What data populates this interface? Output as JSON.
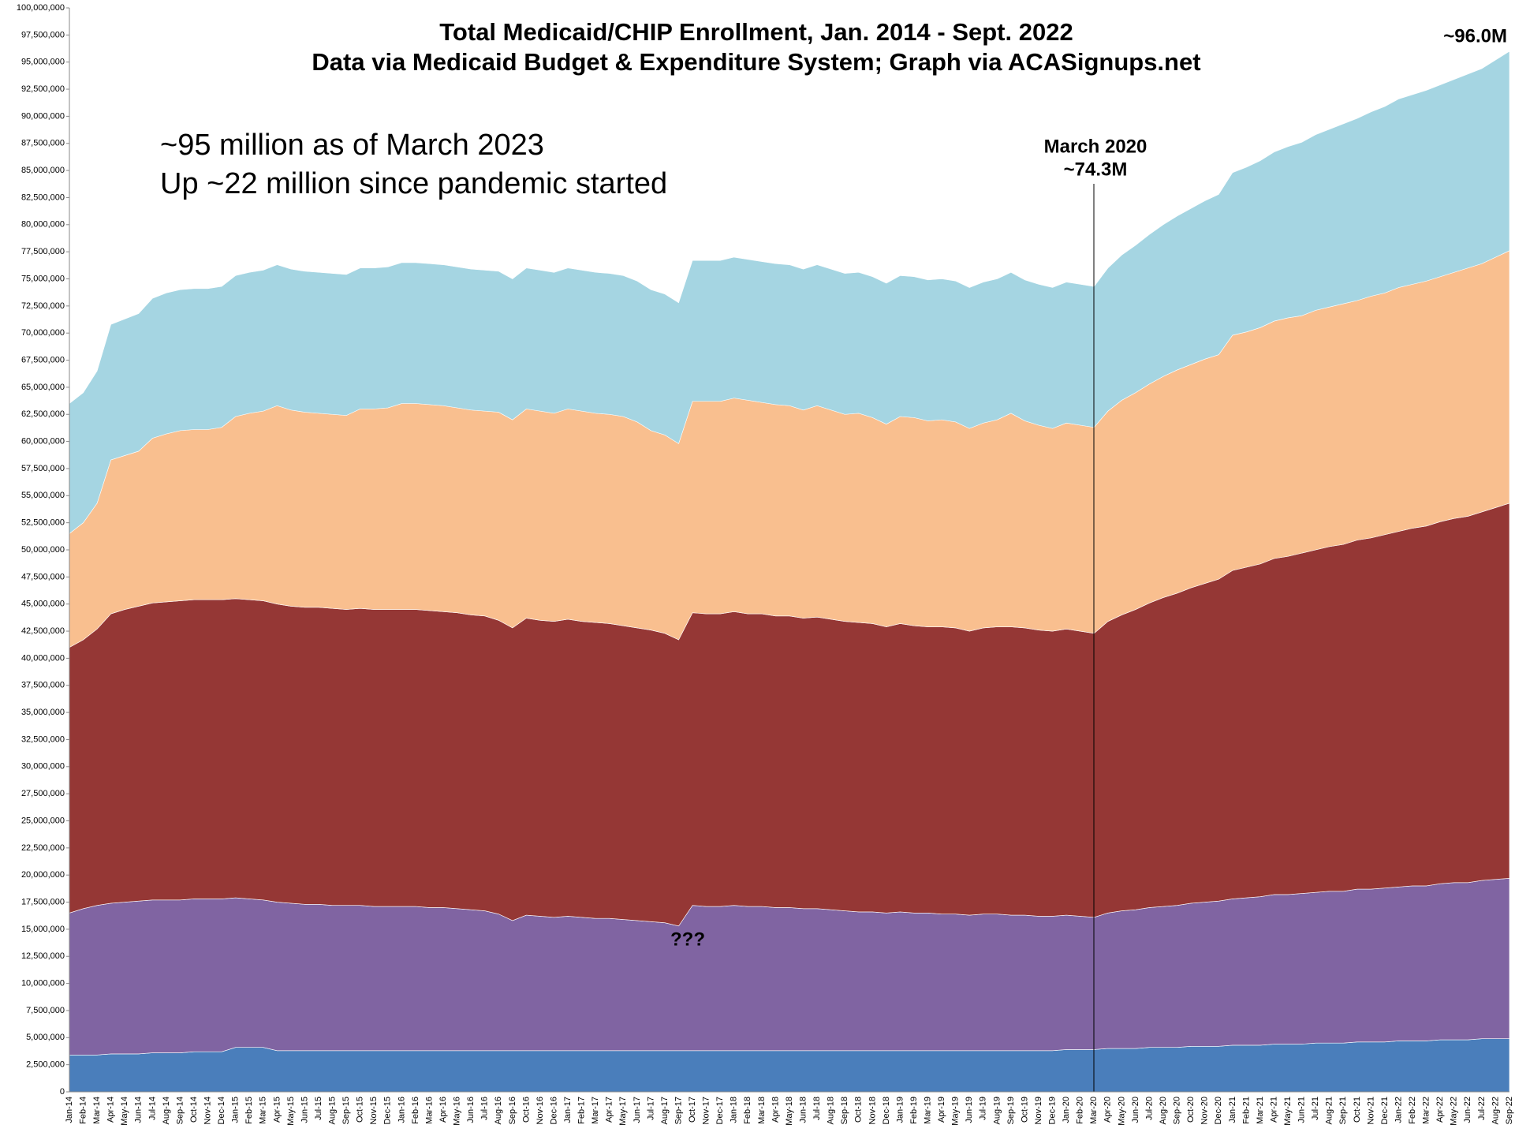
{
  "chart_data": {
    "type": "area",
    "stacked": true,
    "title": "Total Medicaid/CHIP Enrollment, Jan. 2014 - Sept. 2022",
    "subtitle": "Data via Medicaid Budget & Expenditure System; Graph via ACASignups.net",
    "annotations": [
      "~95 million as of March 2023",
      "Up ~22 million since pandemic started",
      "March 2020",
      "~74.3M",
      "~96.0M",
      "???"
    ],
    "categories": [
      "Jan-14",
      "Feb-14",
      "Mar-14",
      "Apr-14",
      "May-14",
      "Jun-14",
      "Jul-14",
      "Aug-14",
      "Sep-14",
      "Oct-14",
      "Nov-14",
      "Dec-14",
      "Jan-15",
      "Feb-15",
      "Mar-15",
      "Apr-15",
      "May-15",
      "Jun-15",
      "Jul-15",
      "Aug-15",
      "Sep-15",
      "Oct-15",
      "Nov-15",
      "Dec-15",
      "Jan-16",
      "Feb-16",
      "Mar-16",
      "Apr-16",
      "May-16",
      "Jun-16",
      "Jul-16",
      "Aug-16",
      "Sep-16",
      "Oct-16",
      "Nov-16",
      "Dec-16",
      "Jan-17",
      "Feb-17",
      "Mar-17",
      "Apr-17",
      "May-17",
      "Jun-17",
      "Jul-17",
      "Aug-17",
      "Sep-17",
      "Oct-17",
      "Nov-17",
      "Dec-17",
      "Jan-18",
      "Feb-18",
      "Mar-18",
      "Apr-18",
      "May-18",
      "Jun-18",
      "Jul-18",
      "Aug-18",
      "Sep-18",
      "Oct-18",
      "Nov-18",
      "Dec-18",
      "Jan-19",
      "Feb-19",
      "Mar-19",
      "Apr-19",
      "May-19",
      "Jun-19",
      "Jul-19",
      "Aug-19",
      "Sep-19",
      "Oct-19",
      "Nov-19",
      "Dec-19",
      "Jan-20",
      "Feb-20",
      "Mar-20",
      "Apr-20",
      "May-20",
      "Jun-20",
      "Jul-20",
      "Aug-20",
      "Sep-20",
      "Oct-20",
      "Nov-20",
      "Dec-20",
      "Jan-21",
      "Feb-21",
      "Mar-21",
      "Apr-21",
      "May-21",
      "Jun-21",
      "Jul-21",
      "Aug-21",
      "Sep-21",
      "Oct-21",
      "Nov-21",
      "Dec-21",
      "Jan-22",
      "Feb-22",
      "Mar-22",
      "Apr-22",
      "May-22",
      "Jun-22",
      "Jul-22",
      "Aug-22",
      "Sep-22"
    ],
    "series": [
      {
        "color": "#4a7ebb",
        "values": [
          3400000,
          3400000,
          3400000,
          3500000,
          3500000,
          3500000,
          3600000,
          3600000,
          3600000,
          3700000,
          3700000,
          3700000,
          4100000,
          4100000,
          4100000,
          3800000,
          3800000,
          3800000,
          3800000,
          3800000,
          3800000,
          3800000,
          3800000,
          3800000,
          3800000,
          3800000,
          3800000,
          3800000,
          3800000,
          3800000,
          3800000,
          3800000,
          3800000,
          3800000,
          3800000,
          3800000,
          3800000,
          3800000,
          3800000,
          3800000,
          3800000,
          3800000,
          3800000,
          3800000,
          3800000,
          3800000,
          3800000,
          3800000,
          3800000,
          3800000,
          3800000,
          3800000,
          3800000,
          3800000,
          3800000,
          3800000,
          3800000,
          3800000,
          3800000,
          3800000,
          3800000,
          3800000,
          3800000,
          3800000,
          3800000,
          3800000,
          3800000,
          3800000,
          3800000,
          3800000,
          3800000,
          3800000,
          3900000,
          3900000,
          3900000,
          4000000,
          4000000,
          4000000,
          4100000,
          4100000,
          4100000,
          4200000,
          4200000,
          4200000,
          4300000,
          4300000,
          4300000,
          4400000,
          4400000,
          4400000,
          4500000,
          4500000,
          4500000,
          4600000,
          4600000,
          4600000,
          4700000,
          4700000,
          4700000,
          4800000,
          4800000,
          4800000,
          4900000,
          4900000,
          4900000
        ]
      },
      {
        "color": "#8064a2",
        "values": [
          13100000,
          13500000,
          13800000,
          13900000,
          14000000,
          14100000,
          14100000,
          14100000,
          14100000,
          14100000,
          14100000,
          14100000,
          13800000,
          13700000,
          13600000,
          13700000,
          13600000,
          13500000,
          13500000,
          13400000,
          13400000,
          13400000,
          13300000,
          13300000,
          13300000,
          13300000,
          13200000,
          13200000,
          13100000,
          13000000,
          12900000,
          12600000,
          12000000,
          12500000,
          12400000,
          12300000,
          12400000,
          12300000,
          12200000,
          12200000,
          12100000,
          12000000,
          11900000,
          11800000,
          11500000,
          13400000,
          13300000,
          13300000,
          13400000,
          13300000,
          13300000,
          13200000,
          13200000,
          13100000,
          13100000,
          13000000,
          12900000,
          12800000,
          12800000,
          12700000,
          12800000,
          12700000,
          12700000,
          12600000,
          12600000,
          12500000,
          12600000,
          12600000,
          12500000,
          12500000,
          12400000,
          12400000,
          12400000,
          12300000,
          12200000,
          12500000,
          12700000,
          12800000,
          12900000,
          13000000,
          13100000,
          13200000,
          13300000,
          13400000,
          13500000,
          13600000,
          13700000,
          13800000,
          13800000,
          13900000,
          13900000,
          14000000,
          14000000,
          14100000,
          14100000,
          14200000,
          14200000,
          14300000,
          14300000,
          14400000,
          14500000,
          14500000,
          14600000,
          14700000,
          14800000
        ]
      },
      {
        "color": "#953735",
        "values": [
          24500000,
          24800000,
          25500000,
          26700000,
          27000000,
          27200000,
          27400000,
          27500000,
          27600000,
          27600000,
          27600000,
          27600000,
          27600000,
          27600000,
          27600000,
          27500000,
          27400000,
          27400000,
          27400000,
          27400000,
          27300000,
          27400000,
          27400000,
          27400000,
          27400000,
          27400000,
          27400000,
          27300000,
          27300000,
          27200000,
          27200000,
          27100000,
          27000000,
          27400000,
          27300000,
          27300000,
          27400000,
          27300000,
          27300000,
          27200000,
          27100000,
          27000000,
          26900000,
          26700000,
          26400000,
          27000000,
          27000000,
          27000000,
          27100000,
          27000000,
          27000000,
          26900000,
          26900000,
          26800000,
          26900000,
          26800000,
          26700000,
          26700000,
          26600000,
          26400000,
          26600000,
          26500000,
          26400000,
          26500000,
          26400000,
          26200000,
          26400000,
          26500000,
          26600000,
          26500000,
          26400000,
          26300000,
          26400000,
          26300000,
          26200000,
          26900000,
          27300000,
          27700000,
          28100000,
          28500000,
          28800000,
          29100000,
          29400000,
          29700000,
          30300000,
          30500000,
          30700000,
          31000000,
          31200000,
          31400000,
          31600000,
          31800000,
          32000000,
          32200000,
          32400000,
          32600000,
          32800000,
          33000000,
          33200000,
          33400000,
          33600000,
          33800000,
          34000000,
          34300000,
          34600000
        ]
      },
      {
        "color": "#f9bf8f",
        "values": [
          10500000,
          10800000,
          11600000,
          14200000,
          14200000,
          14300000,
          15200000,
          15500000,
          15700000,
          15700000,
          15700000,
          15900000,
          16800000,
          17200000,
          17500000,
          18300000,
          18100000,
          18000000,
          17900000,
          17900000,
          17900000,
          18400000,
          18500000,
          18600000,
          19000000,
          19000000,
          19000000,
          19000000,
          18900000,
          18900000,
          18900000,
          19200000,
          19200000,
          19300000,
          19300000,
          19200000,
          19400000,
          19400000,
          19300000,
          19300000,
          19300000,
          19000000,
          18400000,
          18300000,
          18100000,
          19500000,
          19600000,
          19600000,
          19700000,
          19700000,
          19500000,
          19500000,
          19400000,
          19200000,
          19500000,
          19300000,
          19100000,
          19300000,
          19000000,
          18700000,
          19100000,
          19200000,
          19000000,
          19100000,
          19000000,
          18700000,
          18900000,
          19100000,
          19700000,
          19100000,
          18900000,
          18700000,
          19000000,
          19000000,
          19000000,
          19400000,
          19800000,
          20000000,
          20200000,
          20400000,
          20600000,
          20600000,
          20700000,
          20700000,
          21700000,
          21700000,
          21800000,
          21900000,
          22000000,
          21900000,
          22100000,
          22100000,
          22200000,
          22100000,
          22300000,
          22300000,
          22500000,
          22500000,
          22600000,
          22600000,
          22700000,
          22900000,
          22900000,
          23100000,
          23300000
        ]
      },
      {
        "color": "#a5d5e2",
        "values": [
          12000000,
          12000000,
          12200000,
          12500000,
          12600000,
          12700000,
          12900000,
          13000000,
          13000000,
          13000000,
          13000000,
          13000000,
          13000000,
          13000000,
          13000000,
          13000000,
          13000000,
          13000000,
          13000000,
          13000000,
          13000000,
          13000000,
          13000000,
          13000000,
          13000000,
          13000000,
          13000000,
          13000000,
          13000000,
          13000000,
          13000000,
          13000000,
          13000000,
          13000000,
          13000000,
          13000000,
          13000000,
          13000000,
          13000000,
          13000000,
          13000000,
          13000000,
          13000000,
          13000000,
          13000000,
          13000000,
          13000000,
          13000000,
          13000000,
          13000000,
          13000000,
          13000000,
          13000000,
          13000000,
          13000000,
          13000000,
          13000000,
          13000000,
          13000000,
          13000000,
          13000000,
          13000000,
          13000000,
          13000000,
          13000000,
          13000000,
          13000000,
          13000000,
          13000000,
          13000000,
          13000000,
          13000000,
          13000000,
          13000000,
          13000000,
          13200000,
          13400000,
          13600000,
          13800000,
          14000000,
          14200000,
          14400000,
          14600000,
          14800000,
          15000000,
          15200000,
          15400000,
          15600000,
          15800000,
          16000000,
          16200000,
          16400000,
          16600000,
          16800000,
          17000000,
          17200000,
          17400000,
          17500000,
          17600000,
          17700000,
          17800000,
          17900000,
          18000000,
          18200000,
          18400000
        ]
      }
    ],
    "ylim": [
      0,
      100000000
    ],
    "yticks": [
      0,
      {
        "value": 2500000,
        "label": "2,500,000"
      },
      {
        "value": 5000000,
        "label": "5,000,000"
      },
      {
        "value": 7500000,
        "label": "7,500,000"
      },
      {
        "value": 10000000,
        "label": "10,000,000"
      },
      {
        "value": 12500000,
        "label": "12,500,000"
      },
      {
        "value": 15000000,
        "label": "15,000,000"
      },
      {
        "value": 17500000,
        "label": "17,500,000"
      },
      {
        "value": 20000000,
        "label": "20,000,000"
      },
      {
        "value": 22500000,
        "label": "22,500,000"
      },
      {
        "value": 25000000,
        "label": "25,000,000"
      },
      {
        "value": 27500000,
        "label": "27,500,000"
      },
      {
        "value": 30000000,
        "label": "30,000,000"
      },
      {
        "value": 32500000,
        "label": "32,500,000"
      },
      {
        "value": 35000000,
        "label": "35,000,000"
      },
      {
        "value": 37500000,
        "label": "37,500,000"
      },
      {
        "value": 40000000,
        "label": "40,000,000"
      },
      {
        "value": 42500000,
        "label": "42,500,000"
      },
      {
        "value": 45000000,
        "label": "45,000,000"
      },
      {
        "value": 47500000,
        "label": "47,500,000"
      },
      {
        "value": 50000000,
        "label": "50,000,000"
      },
      {
        "value": 52500000,
        "label": "52,500,000"
      },
      {
        "value": 55000000,
        "label": "55,000,000"
      },
      {
        "value": 57500000,
        "label": "57,500,000"
      },
      {
        "value": 60000000,
        "label": "60,000,000"
      },
      {
        "value": 62500000,
        "label": "62,500,000"
      },
      {
        "value": 65000000,
        "label": "65,000,000"
      },
      {
        "value": 67500000,
        "label": "67,500,000"
      },
      {
        "value": 70000000,
        "label": "70,000,000"
      },
      {
        "value": 72500000,
        "label": "72,500,000"
      },
      {
        "value": 75000000,
        "label": "75,000,000"
      },
      {
        "value": 77500000,
        "label": "77,500,000"
      },
      {
        "value": 80000000,
        "label": "80,000,000"
      },
      {
        "value": 82500000,
        "label": "82,500,000"
      },
      {
        "value": 85000000,
        "label": "85,000,000"
      },
      {
        "value": 87500000,
        "label": "87,500,000"
      },
      {
        "value": 90000000,
        "label": "90,000,000"
      },
      {
        "value": 92500000,
        "label": "92,500,000"
      },
      {
        "value": 95000000,
        "label": "95,000,000"
      },
      {
        "value": 97500000,
        "label": "97,500,000"
      },
      {
        "value": 100000000,
        "label": "100,000,000"
      }
    ]
  }
}
